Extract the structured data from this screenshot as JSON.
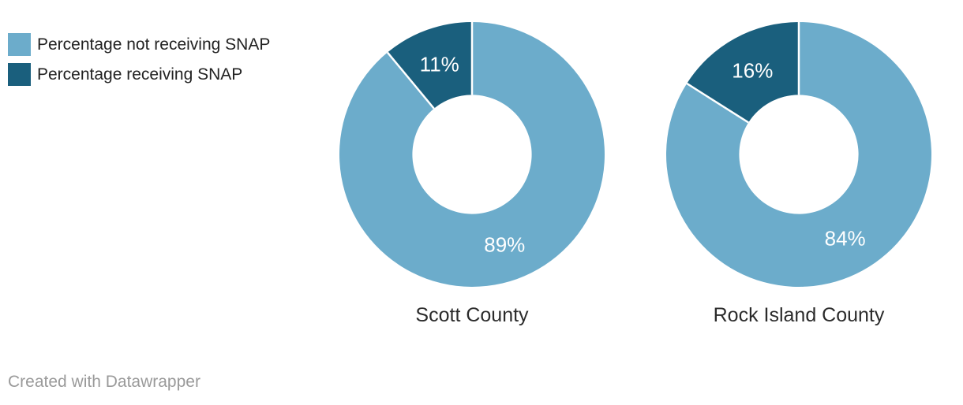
{
  "legend": {
    "items": [
      {
        "label": "Percentage not receiving SNAP",
        "color": "#6caccb"
      },
      {
        "label": "Percentage receiving SNAP",
        "color": "#1a5f7d"
      }
    ]
  },
  "chart_data": {
    "type": "pie",
    "donut": true,
    "unit": "%",
    "categories": [
      "Percentage not receiving SNAP",
      "Percentage receiving SNAP"
    ],
    "colors": [
      "#6caccb",
      "#1a5f7d"
    ],
    "start_angle": "top",
    "direction": "clockwise",
    "inner_radius_ratio": 0.45,
    "slice_label_color": "#ffffff",
    "charts": [
      {
        "title": "Scott County",
        "values": [
          89,
          11
        ],
        "value_labels": [
          "89%",
          "11%"
        ]
      },
      {
        "title": "Rock Island County",
        "values": [
          84,
          16
        ],
        "value_labels": [
          "84%",
          "16%"
        ]
      }
    ]
  },
  "footer": {
    "text": "Created with Datawrapper"
  }
}
